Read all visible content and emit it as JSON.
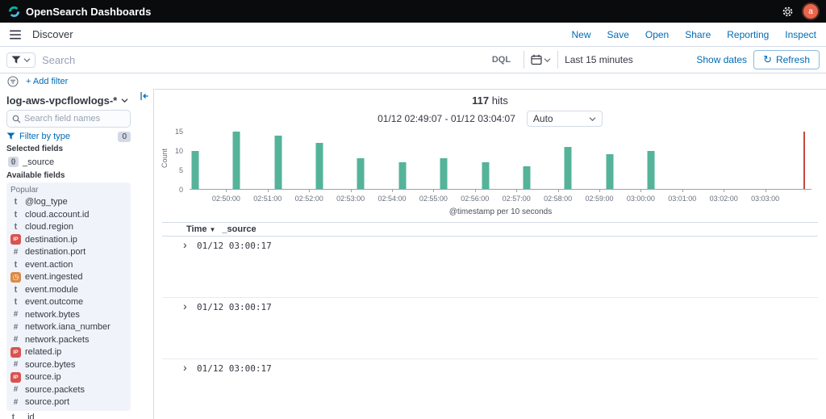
{
  "chrome": {
    "brand": "OpenSearch Dashboards",
    "breadcrumb": "Discover",
    "avatar_initial": "a",
    "nav_links": [
      "New",
      "Save",
      "Open",
      "Share",
      "Reporting",
      "Inspect"
    ]
  },
  "search_bar": {
    "placeholder": "Search",
    "language": "DQL",
    "time_range": "Last 15 minutes",
    "show_dates": "Show dates",
    "refresh": "Refresh"
  },
  "filter_bar": {
    "add_filter": "+ Add filter"
  },
  "sidebar": {
    "index_pattern": "log-aws-vpcflowlogs-*",
    "field_search_placeholder": "Search field names",
    "filter_by_type": "Filter by type",
    "filter_count": "0",
    "selected_fields_title": "Selected fields",
    "selected_fields": [
      {
        "name": "_source",
        "type": "source"
      }
    ],
    "available_fields_title": "Available fields",
    "popular_title": "Popular",
    "popular_fields": [
      {
        "name": "@log_type",
        "type": "string"
      },
      {
        "name": "cloud.account.id",
        "type": "string"
      },
      {
        "name": "cloud.region",
        "type": "string"
      },
      {
        "name": "destination.ip",
        "type": "ip"
      },
      {
        "name": "destination.port",
        "type": "number"
      },
      {
        "name": "event.action",
        "type": "string"
      },
      {
        "name": "event.ingested",
        "type": "date"
      },
      {
        "name": "event.module",
        "type": "string"
      },
      {
        "name": "event.outcome",
        "type": "string"
      },
      {
        "name": "network.bytes",
        "type": "number"
      },
      {
        "name": "network.iana_number",
        "type": "number"
      },
      {
        "name": "network.packets",
        "type": "number"
      },
      {
        "name": "related.ip",
        "type": "ip"
      },
      {
        "name": "source.bytes",
        "type": "number"
      },
      {
        "name": "source.ip",
        "type": "ip"
      },
      {
        "name": "source.packets",
        "type": "number"
      },
      {
        "name": "source.port",
        "type": "number"
      }
    ],
    "other_fields": [
      {
        "name": "_id",
        "type": "string"
      }
    ],
    "type_glyphs": {
      "string": "t",
      "number": "#",
      "ip": "IP",
      "date": "◷",
      "source": "{}"
    }
  },
  "results_header": {
    "hits_count": "117",
    "hits_label": "hits",
    "range_display": "01/12 02:49:07 - 01/12 03:04:07",
    "interval": "Auto"
  },
  "chart_data": {
    "type": "bar",
    "title": "117 hits",
    "xlabel": "@timestamp per 10 seconds",
    "ylabel": "Count",
    "time_start": "02:49:07",
    "time_end": "03:04:07",
    "ylim": [
      0,
      15
    ],
    "yticks": [
      0,
      5,
      10,
      15
    ],
    "x_ticks": [
      "02:50:00",
      "02:51:00",
      "02:52:00",
      "02:53:00",
      "02:54:00",
      "02:55:00",
      "02:56:00",
      "02:57:00",
      "02:58:00",
      "02:59:00",
      "03:00:00",
      "03:01:00",
      "03:02:00",
      "03:03:00"
    ],
    "bars": [
      {
        "time": "02:49:15",
        "count": 10
      },
      {
        "time": "02:50:15",
        "count": 15
      },
      {
        "time": "02:51:15",
        "count": 14
      },
      {
        "time": "02:52:15",
        "count": 12
      },
      {
        "time": "02:53:15",
        "count": 8
      },
      {
        "time": "02:54:15",
        "count": 7
      },
      {
        "time": "02:55:15",
        "count": 8
      },
      {
        "time": "02:56:15",
        "count": 7
      },
      {
        "time": "02:57:15",
        "count": 6
      },
      {
        "time": "02:58:15",
        "count": 11
      },
      {
        "time": "02:59:15",
        "count": 9
      },
      {
        "time": "03:00:15",
        "count": 10
      }
    ],
    "now_marker": "03:03:55",
    "bar_color": "#54B399",
    "marker_color": "#BD271E",
    "legend": "off",
    "grid": "off"
  },
  "table": {
    "time_column": "Time",
    "source_column": "_source",
    "rows": [
      {
        "time": "01/12 03:00:17",
        "source": ""
      },
      {
        "time": "01/12 03:00:17",
        "source": ""
      },
      {
        "time": "01/12 03:00:17",
        "source": ""
      }
    ]
  },
  "colors": {
    "link": "#006BB4",
    "header_bg": "#0a0b0d",
    "bar": "#54B399",
    "marker": "#BD271E",
    "ip_token": "#d9534f",
    "date_token": "#DA8B45"
  }
}
